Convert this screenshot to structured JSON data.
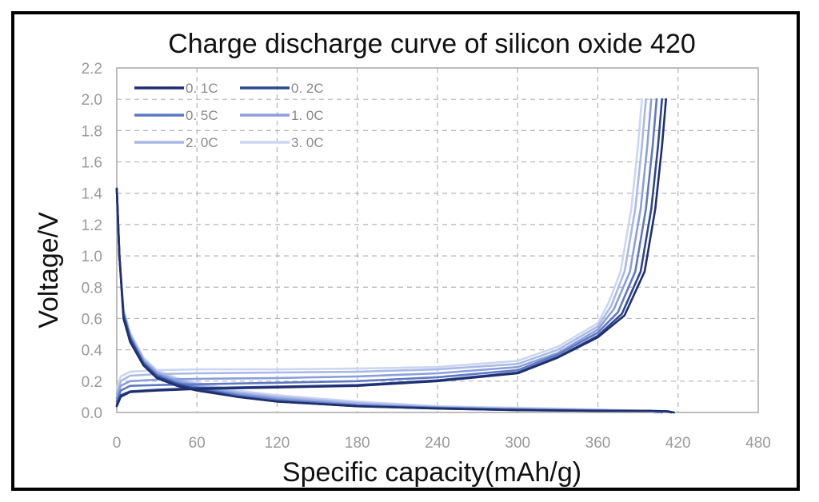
{
  "chart_data": {
    "type": "line",
    "title": "Charge discharge curve of silicon oxide 420",
    "xlabel": "Specific capacity(mAh/g)",
    "ylabel": "Voltage/V",
    "xlim": [
      0,
      480
    ],
    "ylim": [
      0,
      2.2
    ],
    "xticks": [
      "0",
      "60",
      "120",
      "180",
      "240",
      "300",
      "360",
      "420",
      "480"
    ],
    "yticks": [
      "0.0",
      "0.2",
      "0.4",
      "0.6",
      "0.8",
      "1.0",
      "1.2",
      "1.4",
      "1.6",
      "1.8",
      "2.0",
      "2.2"
    ],
    "grid": true,
    "legend_position": "top-left",
    "series": [
      {
        "name": "0. 1C",
        "color": "#1f2f6e",
        "discharge": [
          [
            0,
            1.43
          ],
          [
            2,
            1.0
          ],
          [
            5,
            0.6
          ],
          [
            10,
            0.45
          ],
          [
            20,
            0.3
          ],
          [
            30,
            0.22
          ],
          [
            45,
            0.17
          ],
          [
            60,
            0.14
          ],
          [
            90,
            0.1
          ],
          [
            120,
            0.07
          ],
          [
            180,
            0.04
          ],
          [
            240,
            0.025
          ],
          [
            300,
            0.015
          ],
          [
            360,
            0.01
          ],
          [
            400,
            0.01
          ],
          [
            412,
            0.008
          ],
          [
            417,
            0.0
          ]
        ],
        "charge": [
          [
            0,
            0.04
          ],
          [
            3,
            0.1
          ],
          [
            10,
            0.13
          ],
          [
            30,
            0.14
          ],
          [
            60,
            0.15
          ],
          [
            120,
            0.16
          ],
          [
            180,
            0.17
          ],
          [
            240,
            0.2
          ],
          [
            300,
            0.25
          ],
          [
            330,
            0.35
          ],
          [
            360,
            0.48
          ],
          [
            380,
            0.62
          ],
          [
            395,
            0.9
          ],
          [
            403,
            1.3
          ],
          [
            408,
            1.7
          ],
          [
            411,
            2.0
          ]
        ]
      },
      {
        "name": "0. 2C",
        "color": "#2e4792",
        "discharge": [
          [
            0,
            1.43
          ],
          [
            2,
            1.0
          ],
          [
            5,
            0.62
          ],
          [
            10,
            0.47
          ],
          [
            20,
            0.31
          ],
          [
            30,
            0.23
          ],
          [
            45,
            0.18
          ],
          [
            60,
            0.15
          ],
          [
            90,
            0.1
          ],
          [
            120,
            0.07
          ],
          [
            180,
            0.04
          ],
          [
            240,
            0.025
          ],
          [
            300,
            0.015
          ],
          [
            360,
            0.01
          ],
          [
            400,
            0.01
          ],
          [
            410,
            0.008
          ],
          [
            415,
            0.0
          ]
        ],
        "charge": [
          [
            0,
            0.05
          ],
          [
            3,
            0.11
          ],
          [
            10,
            0.135
          ],
          [
            30,
            0.145
          ],
          [
            60,
            0.155
          ],
          [
            120,
            0.165
          ],
          [
            180,
            0.175
          ],
          [
            240,
            0.205
          ],
          [
            300,
            0.255
          ],
          [
            330,
            0.355
          ],
          [
            360,
            0.49
          ],
          [
            378,
            0.63
          ],
          [
            392,
            0.9
          ],
          [
            400,
            1.3
          ],
          [
            405,
            1.7
          ],
          [
            408,
            2.0
          ]
        ]
      },
      {
        "name": "0. 5C",
        "color": "#5f78c2",
        "discharge": [
          [
            0,
            1.43
          ],
          [
            2,
            1.0
          ],
          [
            5,
            0.63
          ],
          [
            10,
            0.48
          ],
          [
            20,
            0.32
          ],
          [
            30,
            0.24
          ],
          [
            45,
            0.19
          ],
          [
            60,
            0.16
          ],
          [
            90,
            0.11
          ],
          [
            120,
            0.08
          ],
          [
            180,
            0.045
          ],
          [
            240,
            0.03
          ],
          [
            300,
            0.02
          ],
          [
            360,
            0.012
          ],
          [
            400,
            0.01
          ],
          [
            408,
            0.0
          ]
        ],
        "charge": [
          [
            0,
            0.07
          ],
          [
            3,
            0.14
          ],
          [
            10,
            0.17
          ],
          [
            30,
            0.175
          ],
          [
            60,
            0.18
          ],
          [
            120,
            0.19
          ],
          [
            180,
            0.2
          ],
          [
            240,
            0.225
          ],
          [
            300,
            0.27
          ],
          [
            330,
            0.37
          ],
          [
            360,
            0.51
          ],
          [
            375,
            0.64
          ],
          [
            388,
            0.9
          ],
          [
            396,
            1.3
          ],
          [
            401,
            1.7
          ],
          [
            404,
            2.0
          ]
        ]
      },
      {
        "name": "1. 0C",
        "color": "#8a9fdb",
        "discharge": [
          [
            0,
            1.43
          ],
          [
            2,
            1.0
          ],
          [
            5,
            0.64
          ],
          [
            10,
            0.49
          ],
          [
            20,
            0.33
          ],
          [
            30,
            0.25
          ],
          [
            45,
            0.2
          ],
          [
            60,
            0.17
          ],
          [
            90,
            0.12
          ],
          [
            120,
            0.09
          ],
          [
            180,
            0.05
          ],
          [
            240,
            0.03
          ],
          [
            300,
            0.02
          ],
          [
            360,
            0.015
          ],
          [
            400,
            0.01
          ],
          [
            405,
            0.0
          ]
        ],
        "charge": [
          [
            0,
            0.09
          ],
          [
            3,
            0.17
          ],
          [
            10,
            0.2
          ],
          [
            30,
            0.21
          ],
          [
            60,
            0.215
          ],
          [
            120,
            0.22
          ],
          [
            180,
            0.23
          ],
          [
            240,
            0.25
          ],
          [
            300,
            0.29
          ],
          [
            330,
            0.38
          ],
          [
            360,
            0.53
          ],
          [
            372,
            0.66
          ],
          [
            384,
            0.9
          ],
          [
            392,
            1.3
          ],
          [
            397,
            1.7
          ],
          [
            400,
            2.0
          ]
        ]
      },
      {
        "name": "2. 0C",
        "color": "#a9b9e6",
        "discharge": [
          [
            0,
            1.43
          ],
          [
            2,
            1.0
          ],
          [
            5,
            0.65
          ],
          [
            10,
            0.5
          ],
          [
            20,
            0.34
          ],
          [
            30,
            0.26
          ],
          [
            45,
            0.21
          ],
          [
            60,
            0.18
          ],
          [
            90,
            0.13
          ],
          [
            120,
            0.1
          ],
          [
            180,
            0.06
          ],
          [
            240,
            0.035
          ],
          [
            300,
            0.025
          ],
          [
            360,
            0.015
          ],
          [
            400,
            0.01
          ],
          [
            403,
            0.0
          ]
        ],
        "charge": [
          [
            0,
            0.12
          ],
          [
            3,
            0.2
          ],
          [
            10,
            0.235
          ],
          [
            30,
            0.245
          ],
          [
            60,
            0.25
          ],
          [
            120,
            0.255
          ],
          [
            180,
            0.26
          ],
          [
            240,
            0.275
          ],
          [
            300,
            0.31
          ],
          [
            330,
            0.4
          ],
          [
            360,
            0.55
          ],
          [
            370,
            0.68
          ],
          [
            380,
            0.9
          ],
          [
            388,
            1.3
          ],
          [
            393,
            1.7
          ],
          [
            396,
            2.0
          ]
        ]
      },
      {
        "name": "3. 0C",
        "color": "#cbd6f2",
        "discharge": [
          [
            0,
            1.43
          ],
          [
            2,
            1.0
          ],
          [
            5,
            0.66
          ],
          [
            10,
            0.51
          ],
          [
            20,
            0.35
          ],
          [
            30,
            0.27
          ],
          [
            45,
            0.22
          ],
          [
            60,
            0.19
          ],
          [
            90,
            0.14
          ],
          [
            120,
            0.11
          ],
          [
            180,
            0.07
          ],
          [
            240,
            0.04
          ],
          [
            300,
            0.03
          ],
          [
            360,
            0.02
          ],
          [
            400,
            0.01
          ],
          [
            402,
            0.0
          ]
        ],
        "charge": [
          [
            0,
            0.15
          ],
          [
            3,
            0.23
          ],
          [
            10,
            0.26
          ],
          [
            30,
            0.27
          ],
          [
            60,
            0.275
          ],
          [
            120,
            0.275
          ],
          [
            180,
            0.28
          ],
          [
            240,
            0.29
          ],
          [
            300,
            0.33
          ],
          [
            330,
            0.42
          ],
          [
            360,
            0.57
          ],
          [
            368,
            0.7
          ],
          [
            377,
            0.9
          ],
          [
            385,
            1.3
          ],
          [
            390,
            1.7
          ],
          [
            393,
            2.0
          ]
        ]
      }
    ]
  }
}
